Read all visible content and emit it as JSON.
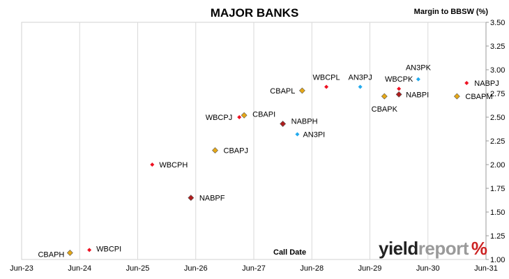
{
  "chart_data": {
    "type": "scatter",
    "title": "MAJOR BANKS",
    "ylabel": "Margin to BBSW (%)",
    "xlabel": "Call Date",
    "ylim": [
      1.0,
      3.5
    ],
    "y_ticks": [
      "1.00",
      "1.25",
      "1.50",
      "1.75",
      "2.00",
      "2.25",
      "2.50",
      "2.75",
      "3.00",
      "3.25",
      "3.50"
    ],
    "xlim": [
      "2023-06",
      "2031-06"
    ],
    "x_ticks": [
      "Jun-23",
      "Jun-24",
      "Jun-25",
      "Jun-26",
      "Jun-27",
      "Jun-28",
      "Jun-29",
      "Jun-30",
      "Jun-31"
    ],
    "grid": "vertical",
    "colors": {
      "gold": "#e6a817",
      "red": "#ee1122",
      "darkred": "#b01c1c",
      "blue": "#22aaee"
    },
    "points": [
      {
        "label": "CBAPH",
        "date": "2024-04",
        "value": 1.07,
        "color": "gold",
        "shape": "diamond"
      },
      {
        "label": "WBCPI",
        "date": "2024-08",
        "value": 1.1,
        "color": "red",
        "shape": "dot"
      },
      {
        "label": "WBCPH",
        "date": "2025-09",
        "value": 2.0,
        "color": "red",
        "shape": "dot"
      },
      {
        "label": "NABPF",
        "date": "2026-05",
        "value": 1.65,
        "color": "darkred",
        "shape": "diamond"
      },
      {
        "label": "CBAPJ",
        "date": "2026-10",
        "value": 2.15,
        "color": "gold",
        "shape": "diamond"
      },
      {
        "label": "WBCPJ",
        "date": "2027-03",
        "value": 2.5,
        "color": "red",
        "shape": "dot"
      },
      {
        "label": "CBAPI",
        "date": "2027-04",
        "value": 2.52,
        "color": "gold",
        "shape": "diamond"
      },
      {
        "label": "NABPH",
        "date": "2027-12",
        "value": 2.43,
        "color": "darkred",
        "shape": "diamond"
      },
      {
        "label": "AN3PI",
        "date": "2028-03",
        "value": 2.32,
        "color": "blue",
        "shape": "dot"
      },
      {
        "label": "CBAPL",
        "date": "2028-04",
        "value": 2.78,
        "color": "gold",
        "shape": "diamond"
      },
      {
        "label": "WBCPL",
        "date": "2028-09",
        "value": 2.82,
        "color": "red",
        "shape": "dot"
      },
      {
        "label": "AN3PJ",
        "date": "2029-04",
        "value": 2.82,
        "color": "blue",
        "shape": "dot"
      },
      {
        "label": "CBAPK",
        "date": "2029-09",
        "value": 2.72,
        "color": "gold",
        "shape": "diamond"
      },
      {
        "label": "WBCPK",
        "date": "2029-12",
        "value": 2.8,
        "color": "red",
        "shape": "dot"
      },
      {
        "label": "NABPI",
        "date": "2029-12",
        "value": 2.74,
        "color": "darkred",
        "shape": "diamond"
      },
      {
        "label": "AN3PK",
        "date": "2030-04",
        "value": 2.9,
        "color": "blue",
        "shape": "dot"
      },
      {
        "label": "CBAPM",
        "date": "2030-12",
        "value": 2.72,
        "color": "gold",
        "shape": "diamond"
      },
      {
        "label": "NABPJ",
        "date": "2031-02",
        "value": 2.86,
        "color": "red",
        "shape": "dot"
      }
    ]
  },
  "logo": {
    "part1": "yield",
    "part2": "report",
    "symbol": "%"
  }
}
